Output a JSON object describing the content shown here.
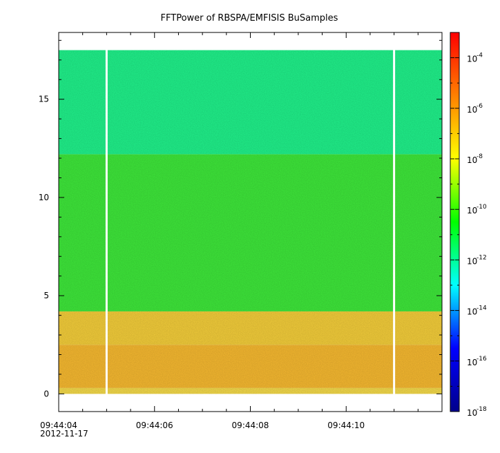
{
  "chart_data": {
    "type": "heatmap",
    "title": "FFTPower of RBSPA/EMFISIS  BuSamples",
    "xlabel": "",
    "ylabel": "",
    "x_tick_labels": [
      "09:44:04",
      "09:44:06",
      "09:44:08",
      "09:44:10"
    ],
    "x_date_label": "2012-11-17",
    "x_range_seconds": [
      4.0,
      12.0
    ],
    "x_ticks_seconds": [
      4,
      6,
      8,
      10
    ],
    "x_minor_step_seconds": 0.5,
    "y_tick_labels": [
      "0",
      "5",
      "10",
      "15"
    ],
    "y_ticks": [
      0,
      5,
      10,
      15
    ],
    "ylim": [
      -0.9,
      18.4
    ],
    "data_y_range": [
      0,
      17.5
    ],
    "data_x_range_seconds": [
      4.0,
      12.0
    ],
    "gaps_x_seconds": [
      5.0,
      11.0
    ],
    "colorbar": {
      "scale": "log",
      "range": [
        1e-18,
        0.001
      ],
      "tick_values": [
        -18,
        -16,
        -14,
        -12,
        -10,
        -8,
        -6,
        -4
      ],
      "tick_bases": [
        "10",
        "10",
        "10",
        "10",
        "10",
        "10",
        "10",
        "10"
      ],
      "tick_exponents": [
        "-18",
        "-16",
        "-14",
        "-12",
        "-10",
        "-8",
        "-6",
        "-4"
      ],
      "colors": [
        "#00008b",
        "#0000ff",
        "#00ffff",
        "#00ff00",
        "#ffff00",
        "#ff8000",
        "#ff0000"
      ]
    },
    "bands": [
      {
        "y_range": [
          0,
          0.3
        ],
        "log_power": -8.4,
        "color": "#f2d84a"
      },
      {
        "y_range": [
          0.3,
          2.5
        ],
        "log_power": -7.8,
        "color": "#f5b830"
      },
      {
        "y_range": [
          2.5,
          4.2
        ],
        "log_power": -8.2,
        "color": "#f2cc3a"
      },
      {
        "y_range": [
          4.2,
          12.2
        ],
        "log_power": -10.5,
        "color": "#3ee63a"
      },
      {
        "y_range": [
          12.2,
          17.5
        ],
        "log_power": -12.0,
        "color": "#20f08a"
      }
    ]
  }
}
